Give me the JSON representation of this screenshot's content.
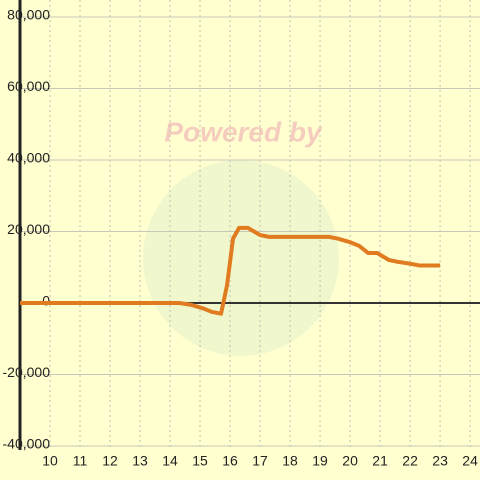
{
  "chart_data": {
    "type": "line",
    "watermark": "Powered by",
    "x": [
      9,
      14.3,
      14.7,
      15.1,
      15.4,
      15.7,
      15.9,
      16.1,
      16.3,
      16.6,
      17,
      17.3,
      19.3,
      19.6,
      20,
      20.3,
      20.6,
      20.9,
      21.3,
      21.6,
      22,
      22.3,
      23
    ],
    "series": [
      {
        "name": null,
        "color": "#e07b20",
        "values": [
          0,
          0,
          -500,
          -1500,
          -2500,
          -3000,
          5000,
          18000,
          21000,
          21000,
          19000,
          18500,
          18500,
          18000,
          17000,
          16000,
          14000,
          14000,
          12000,
          11500,
          11000,
          10500,
          10500
        ]
      }
    ],
    "xlim": [
      9,
      24.33
    ],
    "xticks": [
      10,
      11,
      12,
      13,
      14,
      15,
      16,
      17,
      18,
      19,
      20,
      21,
      22,
      23,
      24
    ],
    "ylim": [
      -40000,
      80000
    ],
    "yticks": [
      {
        "value": -40000,
        "label": "-40,000"
      },
      {
        "value": -20000,
        "label": "-20,000"
      },
      0,
      {
        "value": 20000,
        "label": "20,000"
      },
      {
        "value": 40000,
        "label": "40,000"
      },
      {
        "value": 60000,
        "label": "60,000"
      },
      {
        "value": 80000,
        "label": "80,000"
      }
    ],
    "grid": true
  }
}
